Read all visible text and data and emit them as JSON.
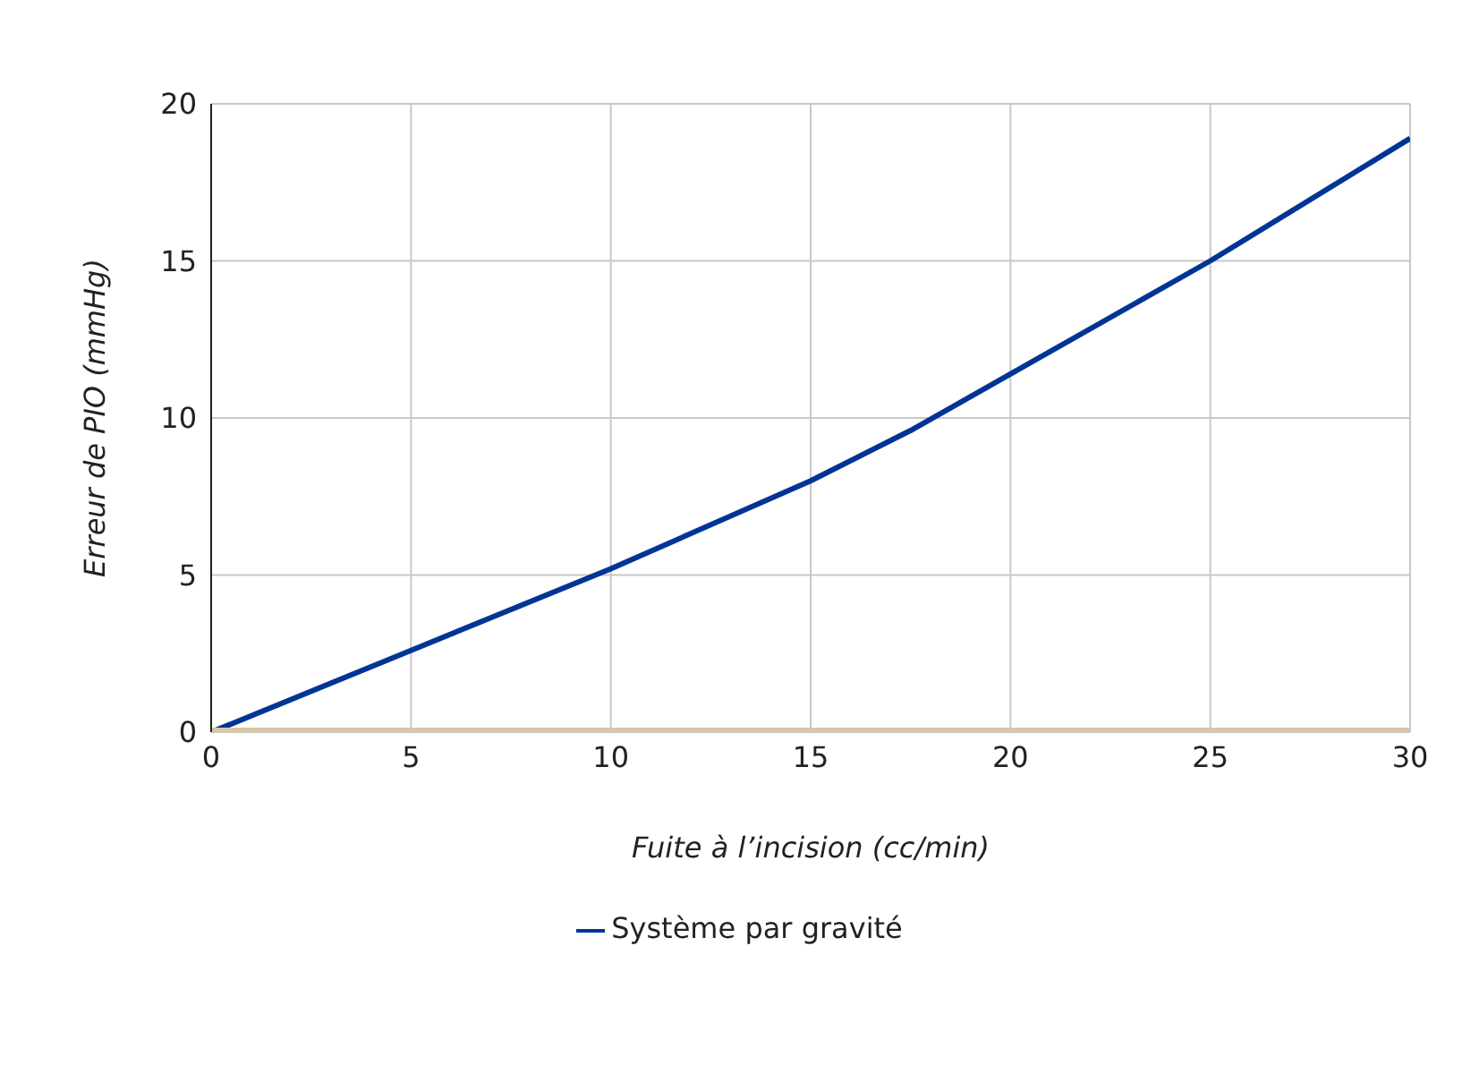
{
  "chart_data": {
    "type": "line",
    "xlabel": "Fuite à l’incision (cc/min)",
    "ylabel": "Erreur de PIO (mmHg)",
    "x": [
      0,
      5,
      10,
      15,
      17.5,
      20,
      25,
      30
    ],
    "series": [
      {
        "name": "Système par gravité",
        "color": "#003595",
        "values": [
          0,
          2.6,
          5.2,
          8,
          9.6,
          11.4,
          15,
          18.9
        ]
      },
      {
        "color": "#d9c7a3",
        "values": [
          0,
          0,
          0,
          0,
          0,
          0,
          0,
          0
        ]
      }
    ],
    "xlim": [
      0,
      30
    ],
    "xticks": [
      0,
      5,
      10,
      15,
      20,
      25,
      30
    ],
    "ylim": [
      0,
      20
    ],
    "yticks": [
      0,
      5,
      10,
      15,
      20
    ],
    "grid": true,
    "legend": "bottom",
    "marker": "none",
    "line_style": "solid"
  }
}
